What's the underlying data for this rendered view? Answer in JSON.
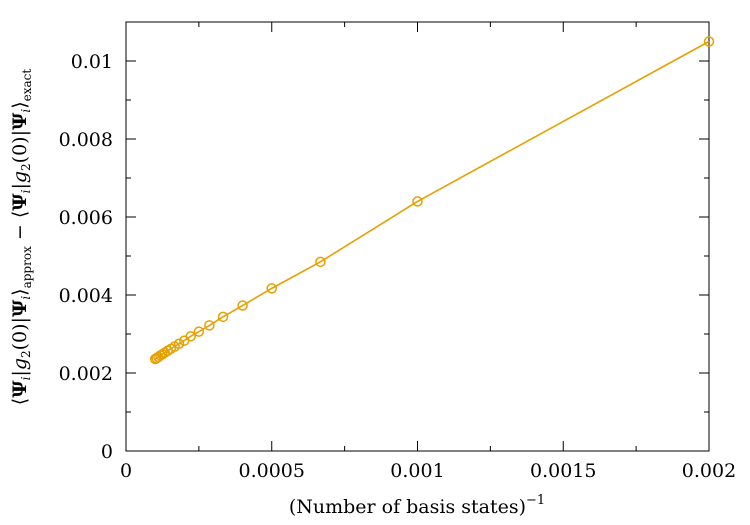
{
  "chart_data": {
    "type": "line",
    "title": "",
    "xlabel": "(Number of basis states)",
    "xlabel_sup": "−1",
    "ylabel": "⟨Ψi|g2(0)|Ψi⟩approx − ⟨Ψi|g2(0)|Ψi⟩exact",
    "ylabel_parts": {
      "bra": "⟨",
      "psi": "Ψ",
      "i": "i",
      "bar": "|",
      "g": "g",
      "two": "2",
      "zero_paren": "(0)",
      "ket": "⟩",
      "approx": "approx",
      "minus": " − ",
      "exact": "exact"
    },
    "xlim": [
      0,
      0.002
    ],
    "ylim": [
      0,
      0.011
    ],
    "xticks": [
      0,
      0.0005,
      0.001,
      0.0015,
      0.002
    ],
    "xtick_labels": [
      "0",
      "0.0005",
      "0.001",
      "0.0015",
      "0.002"
    ],
    "yticks": [
      0,
      0.002,
      0.004,
      0.006,
      0.008,
      0.01
    ],
    "ytick_labels": [
      "0",
      "0.002",
      "0.004",
      "0.006",
      "0.008",
      "0.01"
    ],
    "grid": false,
    "series_color": "#E6A000",
    "series": [
      {
        "name": "",
        "marker": "open-circle",
        "points": [
          [
            0.002,
            0.0105
          ],
          [
            0.001,
            0.0064
          ],
          [
            0.000667,
            0.00485
          ],
          [
            0.0005,
            0.00417
          ],
          [
            0.0004,
            0.00373
          ],
          [
            0.000333,
            0.00344
          ],
          [
            0.000286,
            0.00322
          ],
          [
            0.00025,
            0.00306
          ],
          [
            0.000222,
            0.00294
          ],
          [
            0.0002,
            0.00283
          ],
          [
            0.000182,
            0.00275
          ],
          [
            0.000167,
            0.00268
          ],
          [
            0.000154,
            0.00262
          ],
          [
            0.000143,
            0.00257
          ],
          [
            0.000133,
            0.00252
          ],
          [
            0.000125,
            0.00248
          ],
          [
            0.000118,
            0.00245
          ],
          [
            0.000111,
            0.00241
          ],
          [
            0.000105,
            0.00238
          ],
          [
            0.0001,
            0.00236
          ]
        ]
      }
    ]
  }
}
